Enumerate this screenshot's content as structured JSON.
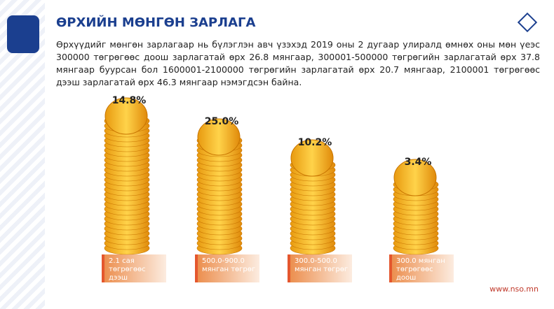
{
  "header": {
    "title": "ӨРХИЙН МӨНГӨН ЗАРЛАГА"
  },
  "paragraph": "Өрхүүдийг мөнгөн зарлагаар нь бүлэглэн авч үзэхэд 2019 оны 2 дугаар улиралд өмнөх оны мөн үеэс 300000 төгрөгөөс доош зарлагатай өрх 26.8 мянгаар, 300001-500000 төгрөгийн зарлагатай өрх 37.8 мянгаар буурсан бол 1600001-2100000 төгрөгийн зарлагатай өрх 20.7 мянгаар, 2100001 төгрөгөөс дээш зарлагатай өрх 46.3 мянгаар нэмэгдсэн байна.",
  "items": [
    {
      "percent": "14.8%",
      "label": "2.1 сая төгрөгөөс дээш"
    },
    {
      "percent": "25.0%",
      "label": "500.0-900.0 мянган төгрөг"
    },
    {
      "percent": "10.2%",
      "label": "300.0-500.0 мянган төгрөг"
    },
    {
      "percent": "3.4%",
      "label": "300.0 мянган төгрөгөөс доош"
    }
  ],
  "footer": "www.nso.mn"
}
